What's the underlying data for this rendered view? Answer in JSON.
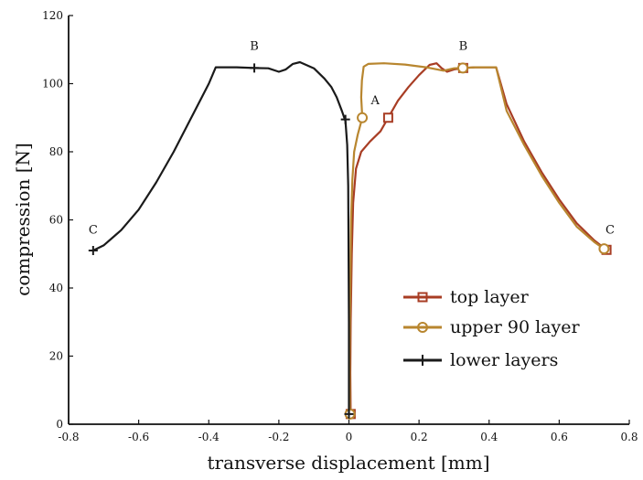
{
  "chart_data": {
    "type": "line",
    "xlabel": "transverse displacement [mm]",
    "ylabel": "compression [N]",
    "xlim": [
      -0.8,
      0.8
    ],
    "ylim": [
      0,
      120
    ],
    "xticks": [
      "-0.8",
      "-0.6",
      "-0.4",
      "-0.2",
      "0",
      "0.2",
      "0.4",
      "0.6",
      "0.8"
    ],
    "yticks": [
      "0",
      "20",
      "40",
      "60",
      "80",
      "100",
      "120"
    ],
    "grid": false,
    "legend_position": "bottom-right",
    "series": [
      {
        "name": "top layer",
        "color": "#a83d24",
        "marker": "square",
        "points": [
          [
            0.005,
            3
          ],
          [
            0.004,
            15
          ],
          [
            0.005,
            30
          ],
          [
            0.008,
            50
          ],
          [
            0.012,
            65
          ],
          [
            0.02,
            75
          ],
          [
            0.035,
            80
          ],
          [
            0.06,
            83
          ],
          [
            0.09,
            86
          ],
          [
            0.112,
            90
          ],
          [
            0.14,
            95
          ],
          [
            0.17,
            99
          ],
          [
            0.2,
            102.5
          ],
          [
            0.23,
            105.5
          ],
          [
            0.25,
            106
          ],
          [
            0.265,
            104.5
          ],
          [
            0.28,
            103.5
          ],
          [
            0.3,
            104.2
          ],
          [
            0.326,
            104.6
          ],
          [
            0.36,
            104.8
          ],
          [
            0.39,
            104.8
          ],
          [
            0.42,
            104.8
          ],
          [
            0.45,
            94
          ],
          [
            0.5,
            83
          ],
          [
            0.55,
            74
          ],
          [
            0.6,
            66
          ],
          [
            0.65,
            59
          ],
          [
            0.7,
            54
          ],
          [
            0.735,
            51.2
          ]
        ],
        "markers": [
          [
            0.005,
            3
          ],
          [
            0.112,
            90
          ],
          [
            0.326,
            104.6
          ],
          [
            0.735,
            51.2
          ]
        ]
      },
      {
        "name": "upper 90 layer",
        "color": "#b8862f",
        "marker": "circle",
        "points": [
          [
            0.003,
            3
          ],
          [
            0.002,
            20
          ],
          [
            0.004,
            40
          ],
          [
            0.006,
            60
          ],
          [
            0.01,
            72
          ],
          [
            0.015,
            80
          ],
          [
            0.025,
            85
          ],
          [
            0.038,
            90
          ],
          [
            0.035,
            96
          ],
          [
            0.037,
            101
          ],
          [
            0.042,
            105
          ],
          [
            0.055,
            105.8
          ],
          [
            0.1,
            106
          ],
          [
            0.16,
            105.6
          ],
          [
            0.22,
            104.8
          ],
          [
            0.26,
            104
          ],
          [
            0.27,
            103.8
          ],
          [
            0.3,
            104.5
          ],
          [
            0.325,
            104.6
          ],
          [
            0.36,
            104.8
          ],
          [
            0.39,
            104.8
          ],
          [
            0.42,
            104.8
          ],
          [
            0.45,
            92
          ],
          [
            0.5,
            82
          ],
          [
            0.55,
            73
          ],
          [
            0.6,
            65
          ],
          [
            0.65,
            58
          ],
          [
            0.7,
            53.5
          ],
          [
            0.728,
            51.5
          ]
        ],
        "markers": [
          [
            0.003,
            3
          ],
          [
            0.038,
            90
          ],
          [
            0.325,
            104.6
          ],
          [
            0.728,
            51.5
          ]
        ]
      },
      {
        "name": "lower layers",
        "color": "#1a1a1a",
        "marker": "plus",
        "points": [
          [
            0.0,
            3
          ],
          [
            0.0,
            30
          ],
          [
            -0.002,
            70
          ],
          [
            -0.005,
            82
          ],
          [
            -0.01,
            89
          ],
          [
            -0.02,
            92
          ],
          [
            -0.035,
            96
          ],
          [
            -0.05,
            99
          ],
          [
            -0.07,
            101.5
          ],
          [
            -0.1,
            104.5
          ],
          [
            -0.14,
            106.3
          ],
          [
            -0.16,
            105.8
          ],
          [
            -0.18,
            104.2
          ],
          [
            -0.2,
            103.5
          ],
          [
            -0.23,
            104.5
          ],
          [
            -0.27,
            104.6
          ],
          [
            -0.32,
            104.8
          ],
          [
            -0.38,
            104.8
          ],
          [
            -0.4,
            100
          ],
          [
            -0.45,
            90
          ],
          [
            -0.5,
            80
          ],
          [
            -0.55,
            71
          ],
          [
            -0.6,
            63
          ],
          [
            -0.65,
            57
          ],
          [
            -0.7,
            52.5
          ],
          [
            -0.73,
            51
          ]
        ],
        "markers": [
          [
            0.0,
            3
          ],
          [
            -0.01,
            89.5
          ],
          [
            -0.27,
            104.6
          ],
          [
            -0.73,
            51
          ]
        ]
      }
    ],
    "annotations": [
      {
        "text": "A",
        "x": 0.075,
        "y": 94
      },
      {
        "text": "B",
        "x": -0.27,
        "y": 110
      },
      {
        "text": "B",
        "x": 0.326,
        "y": 110
      },
      {
        "text": "C",
        "x": -0.73,
        "y": 56
      },
      {
        "text": "C",
        "x": 0.745,
        "y": 56
      }
    ]
  }
}
